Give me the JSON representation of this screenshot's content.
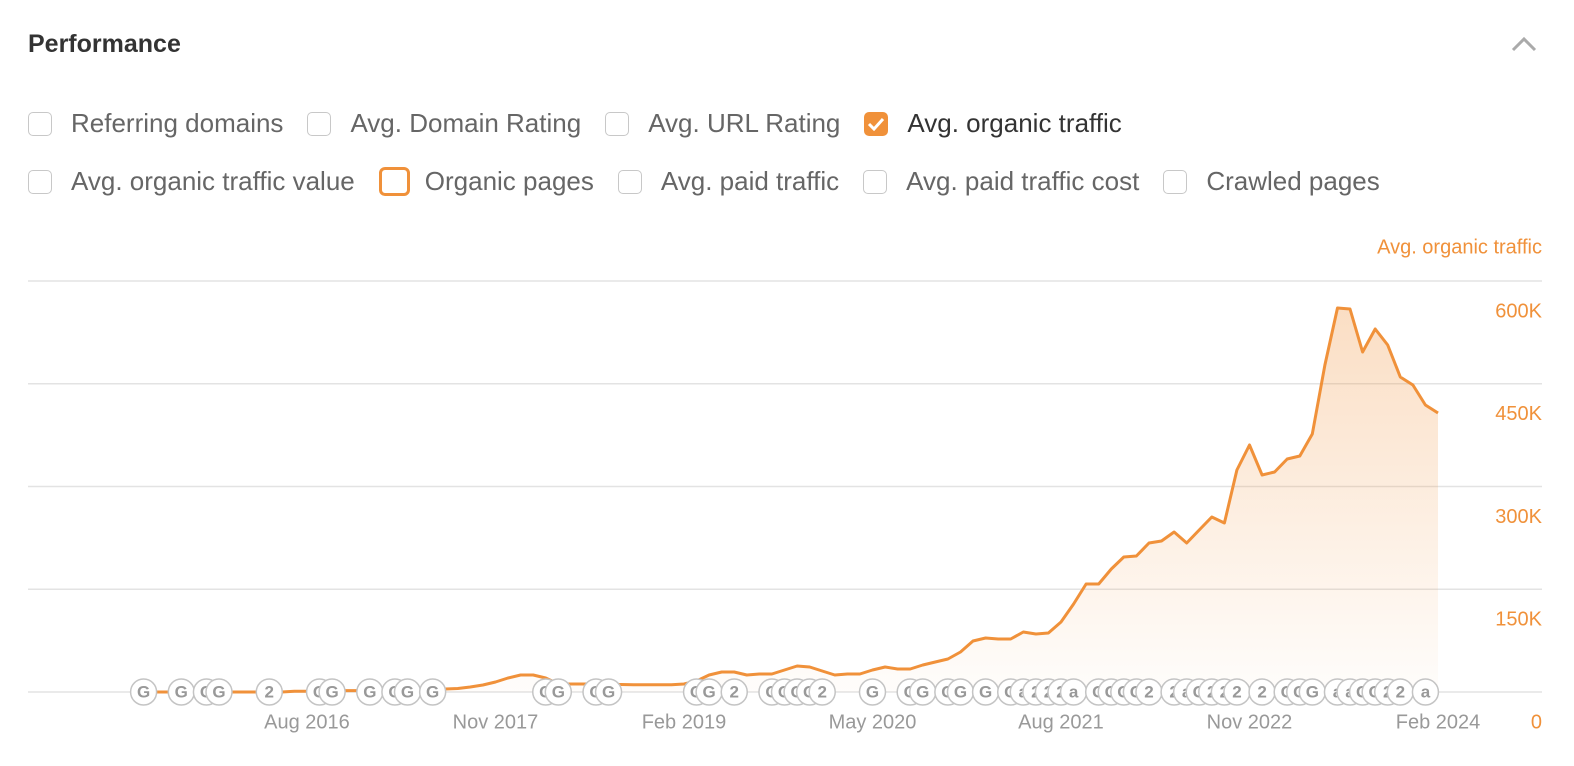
{
  "panel": {
    "title": "Performance",
    "options": [
      [
        {
          "label": "Referring domains",
          "checked": false,
          "highlighted": false
        },
        {
          "label": "Avg. Domain Rating",
          "checked": false,
          "highlighted": false
        },
        {
          "label": "Avg. URL Rating",
          "checked": false,
          "highlighted": false
        },
        {
          "label": "Avg. organic traffic",
          "checked": true,
          "highlighted": false
        }
      ],
      [
        {
          "label": "Avg. organic traffic value",
          "checked": false,
          "highlighted": false
        },
        {
          "label": "Organic pages",
          "checked": false,
          "highlighted": true
        },
        {
          "label": "Avg. paid traffic",
          "checked": false,
          "highlighted": false
        },
        {
          "label": "Avg. paid traffic cost",
          "checked": false,
          "highlighted": false
        },
        {
          "label": "Crawled pages",
          "checked": false,
          "highlighted": false
        }
      ]
    ]
  },
  "chart_data": {
    "type": "area",
    "x": [
      "2015-07",
      "2015-08",
      "2015-09",
      "2015-10",
      "2015-11",
      "2015-12",
      "2016-01",
      "2016-02",
      "2016-03",
      "2016-04",
      "2016-05",
      "2016-06",
      "2016-07",
      "2016-08",
      "2016-09",
      "2016-10",
      "2016-11",
      "2016-12",
      "2017-01",
      "2017-02",
      "2017-03",
      "2017-04",
      "2017-05",
      "2017-06",
      "2017-07",
      "2017-08",
      "2017-09",
      "2017-10",
      "2017-11",
      "2017-12",
      "2018-01",
      "2018-02",
      "2018-03",
      "2018-04",
      "2018-05",
      "2018-06",
      "2018-07",
      "2018-08",
      "2018-09",
      "2018-10",
      "2018-11",
      "2018-12",
      "2019-01",
      "2019-02",
      "2019-03",
      "2019-04",
      "2019-05",
      "2019-06",
      "2019-07",
      "2019-08",
      "2019-09",
      "2019-10",
      "2019-11",
      "2019-12",
      "2020-01",
      "2020-02",
      "2020-03",
      "2020-04",
      "2020-05",
      "2020-06",
      "2020-07",
      "2020-08",
      "2020-09",
      "2020-10",
      "2020-11",
      "2020-12",
      "2021-01",
      "2021-02",
      "2021-03",
      "2021-04",
      "2021-05",
      "2021-06",
      "2021-07",
      "2021-08",
      "2021-09",
      "2021-10",
      "2021-11",
      "2021-12",
      "2022-01",
      "2022-02",
      "2022-03",
      "2022-04",
      "2022-05",
      "2022-06",
      "2022-07",
      "2022-08",
      "2022-09",
      "2022-10",
      "2022-11",
      "2022-12",
      "2023-01",
      "2023-02",
      "2023-03",
      "2023-04",
      "2023-05",
      "2023-06",
      "2023-07",
      "2023-08",
      "2023-09",
      "2023-10",
      "2023-11",
      "2023-12",
      "2024-01",
      "2024-02"
    ],
    "series": [
      {
        "name": "Avg. organic traffic",
        "color": "#f0913a",
        "axis": "y2",
        "values": [
          0,
          0,
          0,
          0,
          0,
          0,
          0,
          0,
          0,
          0,
          0,
          0,
          1000,
          1000,
          1500,
          1500,
          2000,
          2000,
          2000,
          2500,
          2500,
          3000,
          3000,
          3000,
          4400,
          5100,
          7300,
          10200,
          14600,
          20400,
          24800,
          24800,
          20400,
          11700,
          11700,
          11700,
          11700,
          11000,
          11000,
          10500,
          10500,
          10500,
          10500,
          11700,
          16000,
          24800,
          29200,
          29200,
          24800,
          26300,
          26300,
          32100,
          38000,
          36500,
          30700,
          24800,
          26300,
          26300,
          32100,
          36500,
          33600,
          33600,
          39400,
          43800,
          48200,
          58400,
          74500,
          78800,
          77400,
          77400,
          87600,
          84700,
          86100,
          102200,
          128500,
          157700,
          157700,
          179600,
          197100,
          198500,
          217500,
          220400,
          233600,
          217500,
          236500,
          255500,
          246700,
          324100,
          360600,
          316800,
          321200,
          340100,
          344500,
          376600,
          477400,
          560600,
          559100,
          496400,
          529900,
          506600,
          459900,
          448200,
          419000,
          407300
        ]
      }
    ],
    "xticks": [
      {
        "value": "2016-08",
        "label": "Aug 2016"
      },
      {
        "value": "2017-11",
        "label": "Nov 2017"
      },
      {
        "value": "2019-02",
        "label": "Feb 2019"
      },
      {
        "value": "2020-05",
        "label": "May 2020"
      },
      {
        "value": "2021-08",
        "label": "Aug 2021"
      },
      {
        "value": "2022-11",
        "label": "Nov 2022"
      },
      {
        "value": "2024-02",
        "label": "Feb 2024"
      }
    ],
    "y2lim": [
      0,
      600000
    ],
    "y2ticks": [
      0,
      {
        "value": 150000,
        "label": "150K"
      },
      {
        "value": 300000,
        "label": "300K"
      },
      {
        "value": 450000,
        "label": "450K"
      },
      {
        "value": 600000,
        "label": "600K"
      }
    ],
    "grid": true,
    "annotations": [
      {
        "x": "2015-07",
        "label": "G"
      },
      {
        "x": "2015-10",
        "label": "G"
      },
      {
        "x": "2015-12",
        "label": "G"
      },
      {
        "x": "2016-01",
        "label": "G"
      },
      {
        "x": "2016-05",
        "label": "2"
      },
      {
        "x": "2016-09",
        "label": "G"
      },
      {
        "x": "2016-10",
        "label": "G"
      },
      {
        "x": "2017-01",
        "label": "G"
      },
      {
        "x": "2017-03",
        "label": "G"
      },
      {
        "x": "2017-04",
        "label": "G"
      },
      {
        "x": "2017-06",
        "label": "G"
      },
      {
        "x": "2018-03",
        "label": "G"
      },
      {
        "x": "2018-04",
        "label": "G"
      },
      {
        "x": "2018-07",
        "label": "G"
      },
      {
        "x": "2018-08",
        "label": "G"
      },
      {
        "x": "2019-03",
        "label": "G"
      },
      {
        "x": "2019-04",
        "label": "G"
      },
      {
        "x": "2019-06",
        "label": "2"
      },
      {
        "x": "2019-09",
        "label": "G"
      },
      {
        "x": "2019-10",
        "label": "G"
      },
      {
        "x": "2019-11",
        "label": "G"
      },
      {
        "x": "2019-12",
        "label": "G"
      },
      {
        "x": "2020-01",
        "label": "2"
      },
      {
        "x": "2020-05",
        "label": "G"
      },
      {
        "x": "2020-08",
        "label": "G"
      },
      {
        "x": "2020-09",
        "label": "G"
      },
      {
        "x": "2020-11",
        "label": "G"
      },
      {
        "x": "2020-12",
        "label": "G"
      },
      {
        "x": "2021-02",
        "label": "G"
      },
      {
        "x": "2021-04",
        "label": "G"
      },
      {
        "x": "2021-05",
        "label": "a"
      },
      {
        "x": "2021-06",
        "label": "2"
      },
      {
        "x": "2021-07",
        "label": "2"
      },
      {
        "x": "2021-08",
        "label": "2"
      },
      {
        "x": "2021-09",
        "label": "a"
      },
      {
        "x": "2021-11",
        "label": "G"
      },
      {
        "x": "2021-12",
        "label": "G"
      },
      {
        "x": "2022-01",
        "label": "G"
      },
      {
        "x": "2022-02",
        "label": "G"
      },
      {
        "x": "2022-03",
        "label": "2"
      },
      {
        "x": "2022-05",
        "label": "2"
      },
      {
        "x": "2022-06",
        "label": "a"
      },
      {
        "x": "2022-07",
        "label": "G"
      },
      {
        "x": "2022-08",
        "label": "2"
      },
      {
        "x": "2022-09",
        "label": "2"
      },
      {
        "x": "2022-10",
        "label": "2"
      },
      {
        "x": "2022-12",
        "label": "2"
      },
      {
        "x": "2023-02",
        "label": "G"
      },
      {
        "x": "2023-03",
        "label": "G"
      },
      {
        "x": "2023-04",
        "label": "G"
      },
      {
        "x": "2023-06",
        "label": "a"
      },
      {
        "x": "2023-07",
        "label": "a"
      },
      {
        "x": "2023-08",
        "label": "G"
      },
      {
        "x": "2023-09",
        "label": "G"
      },
      {
        "x": "2023-10",
        "label": "2"
      },
      {
        "x": "2023-11",
        "label": "2"
      },
      {
        "x": "2024-01",
        "label": "a"
      }
    ]
  }
}
